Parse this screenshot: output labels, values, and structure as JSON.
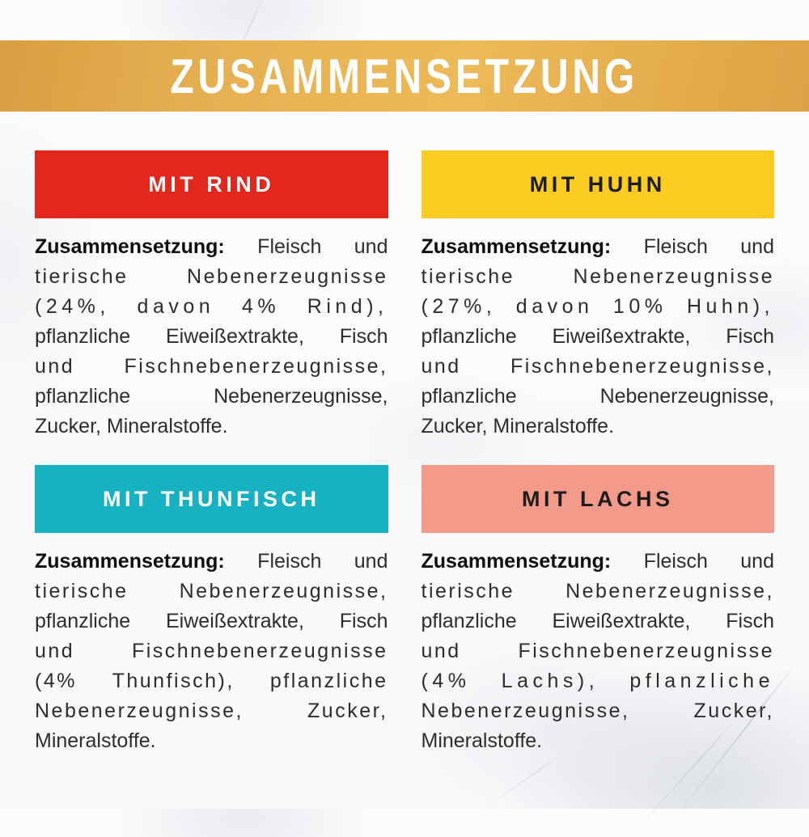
{
  "title": "ZUSAMMENSETZUNG",
  "colors": {
    "gold_start": "#D99E41",
    "gold_light": "#E6B152",
    "gold_mid": "#EDBA58",
    "gold_end": "#DDA245",
    "title_fg": "#FFFFFF",
    "body_text": "#2D2D2D",
    "body_label": "#0E0E0E"
  },
  "sections": [
    {
      "id": "rind",
      "banner": "MIT RIND",
      "banner_bg": "#E3271C",
      "banner_fg": "#FFFFFF",
      "label": "Zusammensetzung:",
      "first_line_rest": "Fleisch und",
      "lines": [
        "tierische Nebenerzeugnisse",
        "(24%, davon 4% Rind),",
        "pflanzliche Eiweißextrakte, Fisch",
        "und Fischnebenerzeugnisse,",
        "pflanzliche Nebenerzeugnisse,",
        "Zucker, Mineralstoffe."
      ]
    },
    {
      "id": "huhn",
      "banner": "MIT HUHN",
      "banner_bg": "#FCCD20",
      "banner_fg": "#1D1D1B",
      "label": "Zusammensetzung:",
      "first_line_rest": "Fleisch und",
      "lines": [
        "tierische Nebenerzeugnisse",
        "(27%, davon 10% Huhn),",
        "pflanzliche Eiweißextrakte, Fisch",
        "und Fischnebenerzeugnisse,",
        "pflanzliche Nebenerzeugnisse,",
        "Zucker, Mineralstoffe."
      ]
    },
    {
      "id": "thunfisch",
      "banner": "MIT THUNFISCH",
      "banner_bg": "#16B2C1",
      "banner_fg": "#FFFFFF",
      "label": "Zusammensetzung:",
      "first_line_rest": "Fleisch und",
      "lines": [
        "tierische Nebenerzeugnisse,",
        "pflanzliche Eiweißextrakte, Fisch",
        "und Fischnebenerzeugnisse",
        "(4% Thunfisch), pflanzliche",
        "Nebenerzeugnisse, Zucker,",
        "Mineralstoffe."
      ]
    },
    {
      "id": "lachs",
      "banner": "MIT LACHS",
      "banner_bg": "#F39A8B",
      "banner_fg": "#1D1D1B",
      "label": "Zusammensetzung:",
      "first_line_rest": "Fleisch und",
      "lines": [
        "tierische Nebenerzeugnisse,",
        "pflanzliche Eiweißextrakte, Fisch",
        "und Fischnebenerzeugnisse",
        "(4% Lachs), pflanzliche",
        "Nebenerzeugnisse, Zucker,",
        "Mineralstoffe."
      ]
    }
  ]
}
